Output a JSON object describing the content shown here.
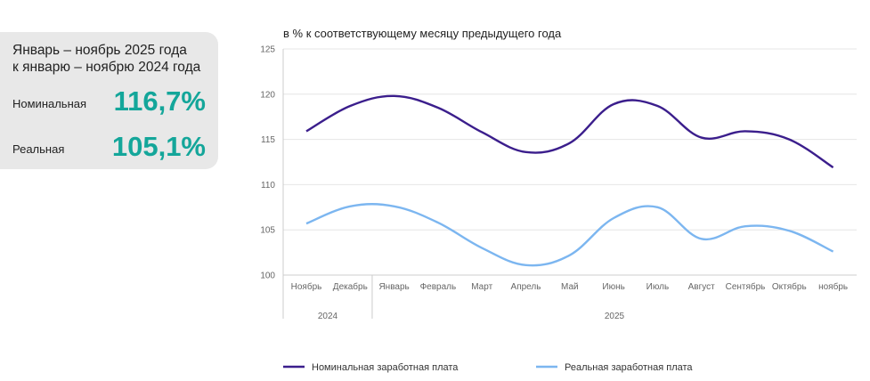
{
  "summary": {
    "title_line1": "Январь – ноябрь 2025 года",
    "title_line2": "к январю – ноябрю 2024 года",
    "nominal_label": "Номинальная",
    "nominal_value": "116,7%",
    "real_label": "Реальная",
    "real_value": "105,1%",
    "accent_color": "#14a69a",
    "panel_color": "#e8e8e8"
  },
  "chart_data": {
    "type": "line",
    "title": "в % к соответствующему месяцу предыдущего года",
    "categories": [
      "Ноябрь",
      "Декабрь",
      "Январь",
      "Февраль",
      "Март",
      "Апрель",
      "Май",
      "Июнь",
      "Июль",
      "Август",
      "Сентябрь",
      "Октябрь",
      "ноябрь"
    ],
    "year_groups": [
      {
        "label": "2024",
        "count": 2
      },
      {
        "label": "2025",
        "count": 11
      }
    ],
    "ylim": [
      100,
      125
    ],
    "yticks": [
      100,
      105,
      110,
      115,
      120,
      125
    ],
    "grid": true,
    "legend_position": "bottom",
    "series": [
      {
        "name": "Номинальная заработная плата",
        "color": "#3b1e8c",
        "values": [
          115.9,
          118.7,
          119.8,
          118.5,
          115.8,
          113.6,
          114.6,
          118.9,
          118.7,
          115.2,
          115.9,
          115.0,
          111.9
        ]
      },
      {
        "name": "Реальная заработная плата",
        "color": "#7cb6f0",
        "values": [
          105.7,
          107.6,
          107.6,
          105.8,
          103.0,
          101.1,
          102.2,
          106.3,
          107.5,
          104.0,
          105.4,
          104.9,
          102.6
        ]
      }
    ]
  }
}
